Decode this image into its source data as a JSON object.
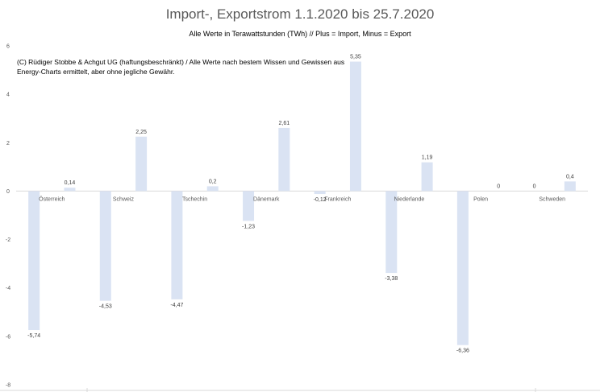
{
  "chart_data": {
    "type": "bar",
    "title": "Import-, Exportstrom 1.1.2020 bis 25.7.2020",
    "subtitle": "Alle Werte in Terawattstunden (TWh) // Plus = Import, Minus = Export",
    "note": "(C) Rüdiger Stobbe & Achgut UG (haftungsbeschränkt) / Alle Werte nach bestem Wissen und Gewissen aus Energy-Charts ermittelt, aber ohne jegliche Gewähr.",
    "categories": [
      "Österreich",
      "Schweiz",
      "Tschechin",
      "Dänemark",
      "Frankreich",
      "Niederlande",
      "Polen",
      "Schweden"
    ],
    "series": [
      {
        "values": [
          -5.74,
          -4.53,
          -4.47,
          -1.23,
          -0.12,
          -3.38,
          -6.36,
          0
        ]
      },
      {
        "values": [
          0.14,
          2.25,
          0.2,
          2.61,
          5.35,
          1.19,
          0,
          0.4
        ]
      }
    ],
    "data_labels": [
      [
        "-5,74",
        "-4,53",
        "-4,47",
        "-1,23",
        "-0,12",
        "-3,38",
        "-6,36",
        "0"
      ],
      [
        "0,14",
        "2,25",
        "0,2",
        "2,61",
        "5,35",
        "1,19",
        "0",
        "0,4"
      ]
    ],
    "yticks": [
      6,
      4,
      2,
      0,
      -2,
      -4,
      -6,
      -8
    ],
    "ylim": [
      -8,
      6
    ],
    "bar_color": "#dae3f3",
    "grid": false
  }
}
